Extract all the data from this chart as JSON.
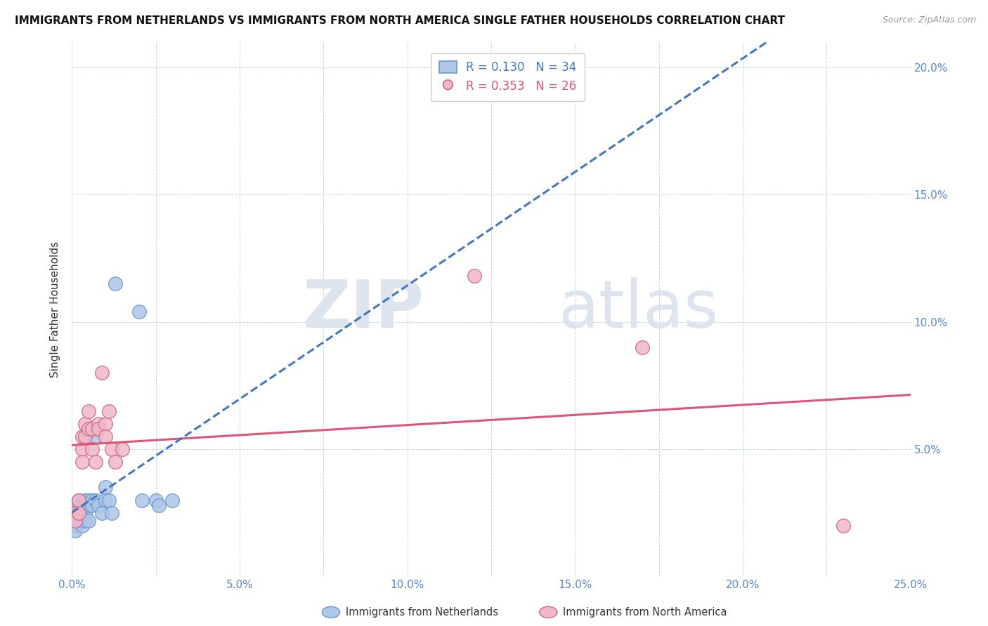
{
  "title": "IMMIGRANTS FROM NETHERLANDS VS IMMIGRANTS FROM NORTH AMERICA SINGLE FATHER HOUSEHOLDS CORRELATION CHART",
  "source": "Source: ZipAtlas.com",
  "ylabel": "Single Father Households",
  "xlim": [
    0.0,
    0.25
  ],
  "ylim": [
    0.0,
    0.21
  ],
  "xticks": [
    0.0,
    0.05,
    0.1,
    0.15,
    0.2,
    0.25
  ],
  "yticks": [
    0.0,
    0.05,
    0.1,
    0.15,
    0.2
  ],
  "xtick_labels": [
    "0.0%",
    "",
    "5.0%",
    "",
    "10.0%",
    "",
    "15.0%",
    "",
    "20.0%",
    "",
    "25.0%"
  ],
  "xtick_positions": [
    0.0,
    0.025,
    0.05,
    0.075,
    0.1,
    0.125,
    0.15,
    0.175,
    0.2,
    0.225,
    0.25
  ],
  "ytick_labels": [
    "",
    "5.0%",
    "10.0%",
    "15.0%",
    "20.0%"
  ],
  "netherlands_color": "#aec6e8",
  "north_america_color": "#f0b8c8",
  "netherlands_edge": "#6699cc",
  "north_america_edge": "#cc6688",
  "trend_netherlands_color": "#4477bb",
  "trend_north_america_color": "#dd5577",
  "r_netherlands": 0.13,
  "n_netherlands": 34,
  "r_north_america": 0.353,
  "n_north_america": 26,
  "watermark_zip": "ZIP",
  "watermark_atlas": "atlas",
  "legend_label_netherlands": "Immigrants from Netherlands",
  "legend_label_north_america": "Immigrants from North America",
  "netherlands_x": [
    0.001,
    0.001,
    0.001,
    0.002,
    0.002,
    0.002,
    0.002,
    0.003,
    0.003,
    0.003,
    0.003,
    0.004,
    0.004,
    0.004,
    0.004,
    0.005,
    0.005,
    0.005,
    0.006,
    0.006,
    0.007,
    0.007,
    0.008,
    0.009,
    0.01,
    0.01,
    0.011,
    0.012,
    0.013,
    0.02,
    0.021,
    0.025,
    0.026,
    0.03
  ],
  "netherlands_y": [
    0.02,
    0.022,
    0.018,
    0.025,
    0.028,
    0.022,
    0.03,
    0.028,
    0.025,
    0.022,
    0.02,
    0.03,
    0.028,
    0.025,
    0.022,
    0.03,
    0.028,
    0.022,
    0.03,
    0.028,
    0.055,
    0.03,
    0.028,
    0.025,
    0.035,
    0.03,
    0.03,
    0.025,
    0.115,
    0.104,
    0.03,
    0.03,
    0.028,
    0.03
  ],
  "north_america_x": [
    0.001,
    0.001,
    0.002,
    0.002,
    0.003,
    0.003,
    0.003,
    0.004,
    0.004,
    0.005,
    0.005,
    0.006,
    0.006,
    0.007,
    0.008,
    0.008,
    0.009,
    0.01,
    0.01,
    0.011,
    0.012,
    0.013,
    0.015,
    0.12,
    0.17,
    0.23
  ],
  "north_america_y": [
    0.025,
    0.022,
    0.03,
    0.025,
    0.055,
    0.05,
    0.045,
    0.06,
    0.055,
    0.065,
    0.058,
    0.058,
    0.05,
    0.045,
    0.06,
    0.058,
    0.08,
    0.06,
    0.055,
    0.065,
    0.05,
    0.045,
    0.05,
    0.118,
    0.09,
    0.02
  ]
}
